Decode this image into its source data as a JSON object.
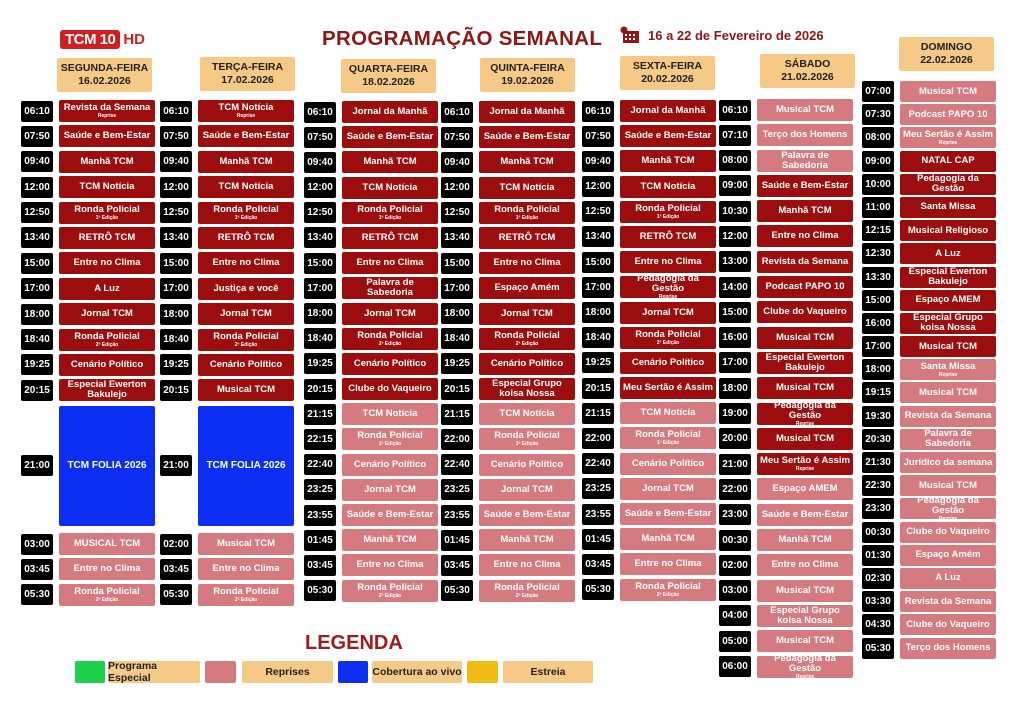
{
  "header": {
    "logo_text": "TCM 10 HD",
    "logo_main": "TCM 10",
    "logo_suffix": "HD",
    "title": "PROGRAMAÇÃO SEMANAL",
    "date_range": "16 a 22 de Fevereiro de 2026",
    "date_icon": "calendar-icon"
  },
  "colors": {
    "live": "#9c0e0e",
    "reprise": "#d57a7f",
    "cobertura": "#0b2ef2",
    "especial": "#1fd14a",
    "estreia": "#f0bd10",
    "header_bg": "#f7c987",
    "title": "#8d1717"
  },
  "days": [
    {
      "name": "SEGUNDA-FEIRA",
      "date": "16.02.2026",
      "programs": [
        {
          "time": "06:10",
          "title": "Revista da Semana",
          "sub": "Reprise",
          "type": "live"
        },
        {
          "time": "07:50",
          "title": "Saúde e Bem-Estar",
          "type": "live"
        },
        {
          "time": "09:40",
          "title": "Manhã TCM",
          "type": "live"
        },
        {
          "time": "12:00",
          "title": "TCM Notícia",
          "type": "live"
        },
        {
          "time": "12:50",
          "title": "Ronda Policial",
          "sub": "1ª Edição",
          "type": "live"
        },
        {
          "time": "13:40",
          "title": "RETRÔ TCM",
          "type": "live"
        },
        {
          "time": "15:00",
          "title": "Entre no Clima",
          "type": "live"
        },
        {
          "time": "17:00",
          "title": "A Luz",
          "type": "live"
        },
        {
          "time": "18:00",
          "title": "Jornal TCM",
          "type": "live"
        },
        {
          "time": "18:40",
          "title": "Ronda Policial",
          "sub": "2ª Edição",
          "type": "live"
        },
        {
          "time": "19:25",
          "title": "Cenário Político",
          "type": "live"
        },
        {
          "time": "20:15",
          "title": "Especial Ewerton Bakulejo",
          "type": "live"
        },
        {
          "time": "21:00",
          "title": "TCM FOLIA 2026",
          "type": "cobertura"
        },
        {
          "time": "03:00",
          "title": "MUSICAL TCM",
          "type": "reprise"
        },
        {
          "time": "03:45",
          "title": "Entre no Clima",
          "type": "reprise"
        },
        {
          "time": "05:30",
          "title": "Ronda Policial",
          "sub": "2ª Edição",
          "type": "reprise"
        }
      ]
    },
    {
      "name": "TERÇA-FEIRA",
      "date": "17.02.2026",
      "programs": [
        {
          "time": "06:10",
          "title": "TCM Notícia",
          "sub": "Reprise",
          "type": "live"
        },
        {
          "time": "07:50",
          "title": "Saúde e Bem-Estar",
          "type": "live"
        },
        {
          "time": "09:40",
          "title": "Manhã TCM",
          "type": "live"
        },
        {
          "time": "12:00",
          "title": "TCM Notícia",
          "type": "live"
        },
        {
          "time": "12:50",
          "title": "Ronda Policial",
          "sub": "1ª Edição",
          "type": "live"
        },
        {
          "time": "13:40",
          "title": "RETRÔ TCM",
          "type": "live"
        },
        {
          "time": "15:00",
          "title": "Entre no Clima",
          "type": "live"
        },
        {
          "time": "17:00",
          "title": "Justiça e você",
          "type": "live"
        },
        {
          "time": "18:00",
          "title": "Jornal TCM",
          "type": "live"
        },
        {
          "time": "18:40",
          "title": "Ronda Policial",
          "sub": "2ª Edição",
          "type": "live"
        },
        {
          "time": "19:25",
          "title": "Cenário Político",
          "type": "live"
        },
        {
          "time": "20:15",
          "title": "Musical TCM",
          "type": "live"
        },
        {
          "time": "21:00",
          "title": "TCM FOLIA 2026",
          "type": "cobertura"
        },
        {
          "time": "02:00",
          "title": "Musical TCM",
          "type": "reprise"
        },
        {
          "time": "03:45",
          "title": "Entre no Clima",
          "type": "reprise"
        },
        {
          "time": "05:30",
          "title": "Ronda Policial",
          "sub": "2ª Edição",
          "type": "reprise"
        }
      ]
    },
    {
      "name": "QUARTA-FEIRA",
      "date": "18.02.2026",
      "programs": [
        {
          "time": "06:10",
          "title": "Jornal da Manhã",
          "type": "live"
        },
        {
          "time": "07:50",
          "title": "Saúde e Bem-Estar",
          "type": "live"
        },
        {
          "time": "09:40",
          "title": "Manhã TCM",
          "type": "live"
        },
        {
          "time": "12:00",
          "title": "TCM Notícia",
          "type": "live"
        },
        {
          "time": "12:50",
          "title": "Ronda Policial",
          "sub": "1ª Edição",
          "type": "live"
        },
        {
          "time": "13:40",
          "title": "RETRÔ TCM",
          "type": "live"
        },
        {
          "time": "15:00",
          "title": "Entre no Clima",
          "type": "live"
        },
        {
          "time": "17:00",
          "title": "Palavra de Sabedoria",
          "type": "live"
        },
        {
          "time": "18:00",
          "title": "Jornal TCM",
          "type": "live"
        },
        {
          "time": "18:40",
          "title": "Ronda Policial",
          "sub": "2ª Edição",
          "type": "live"
        },
        {
          "time": "19:25",
          "title": "Cenário Político",
          "type": "live"
        },
        {
          "time": "20:15",
          "title": "Clube do Vaqueiro",
          "type": "live"
        },
        {
          "time": "21:15",
          "title": "TCM Notícia",
          "type": "reprise"
        },
        {
          "time": "22:15",
          "title": "Ronda Policial",
          "sub": "1ª Edição",
          "type": "reprise"
        },
        {
          "time": "22:40",
          "title": "Cenário Político",
          "type": "reprise"
        },
        {
          "time": "23:25",
          "title": "Jornal TCM",
          "type": "reprise"
        },
        {
          "time": "23:55",
          "title": "Saúde e Bem-Estar",
          "type": "reprise"
        },
        {
          "time": "01:45",
          "title": "Manhã TCM",
          "type": "reprise"
        },
        {
          "time": "03:45",
          "title": "Entre no Clima",
          "type": "reprise"
        },
        {
          "time": "05:30",
          "title": "Ronda Policial",
          "sub": "2ª Edição",
          "type": "reprise"
        }
      ]
    },
    {
      "name": "QUINTA-FEIRA",
      "date": "19.02.2026",
      "programs": [
        {
          "time": "06:10",
          "title": "Jornal da Manhã",
          "type": "live"
        },
        {
          "time": "07:50",
          "title": "Saúde e Bem-Estar",
          "type": "live"
        },
        {
          "time": "09:40",
          "title": "Manhã TCM",
          "type": "live"
        },
        {
          "time": "12:00",
          "title": "TCM Notícia",
          "type": "live"
        },
        {
          "time": "12:50",
          "title": "Ronda Policial",
          "sub": "1ª Edição",
          "type": "live"
        },
        {
          "time": "13:40",
          "title": "RETRÔ TCM",
          "type": "live"
        },
        {
          "time": "15:00",
          "title": "Entre no Clima",
          "type": "live"
        },
        {
          "time": "17:00",
          "title": "Espaço Amém",
          "type": "live"
        },
        {
          "time": "18:00",
          "title": "Jornal TCM",
          "type": "live"
        },
        {
          "time": "18:40",
          "title": "Ronda Policial",
          "sub": "2ª Edição",
          "type": "live"
        },
        {
          "time": "19:25",
          "title": "Cenário Político",
          "type": "live"
        },
        {
          "time": "20:15",
          "title": "Especial Grupo koisa Nossa",
          "type": "live"
        },
        {
          "time": "21:15",
          "title": "TCM Notícia",
          "type": "reprise"
        },
        {
          "time": "22:00",
          "title": "Ronda Policial",
          "sub": "1ª Edição",
          "type": "reprise"
        },
        {
          "time": "22:40",
          "title": "Cenário Político",
          "type": "reprise"
        },
        {
          "time": "23:25",
          "title": "Jornal TCM",
          "type": "reprise"
        },
        {
          "time": "23:55",
          "title": "Saúde e Bem-Estar",
          "type": "reprise"
        },
        {
          "time": "01:45",
          "title": "Manhã TCM",
          "type": "reprise"
        },
        {
          "time": "03:45",
          "title": "Entre no Clima",
          "type": "reprise"
        },
        {
          "time": "05:30",
          "title": "Ronda Policial",
          "sub": "2ª Edição",
          "type": "reprise"
        }
      ]
    },
    {
      "name": "SEXTA-FEIRA",
      "date": "20.02.2026",
      "programs": [
        {
          "time": "06:10",
          "title": "Jornal da Manhã",
          "type": "live"
        },
        {
          "time": "07:50",
          "title": "Saúde e Bem-Estar",
          "type": "live"
        },
        {
          "time": "09:40",
          "title": "Manhã TCM",
          "type": "live"
        },
        {
          "time": "12:00",
          "title": "TCM Notícia",
          "type": "live"
        },
        {
          "time": "12:50",
          "title": "Ronda Policial",
          "sub": "1ª Edição",
          "type": "live"
        },
        {
          "time": "13:40",
          "title": "RETRÔ TCM",
          "type": "live"
        },
        {
          "time": "15:00",
          "title": "Entre no Clima",
          "type": "live"
        },
        {
          "time": "17:00",
          "title": "Pedagogia da Gestão",
          "sub": "Reprise",
          "type": "live"
        },
        {
          "time": "18:00",
          "title": "Jornal TCM",
          "type": "live"
        },
        {
          "time": "18:40",
          "title": "Ronda Policial",
          "sub": "2ª Edição",
          "type": "live"
        },
        {
          "time": "19:25",
          "title": "Cenário Político",
          "type": "live"
        },
        {
          "time": "20:15",
          "title": "Meu Sertão é Assim",
          "type": "live"
        },
        {
          "time": "21:15",
          "title": "TCM Notícia",
          "type": "reprise"
        },
        {
          "time": "22:00",
          "title": "Ronda Policial",
          "sub": "1ª Edição",
          "type": "reprise"
        },
        {
          "time": "22:40",
          "title": "Cenário Político",
          "type": "reprise"
        },
        {
          "time": "23:25",
          "title": "Jornal TCM",
          "type": "reprise"
        },
        {
          "time": "23:55",
          "title": "Saúde e Bem-Estar",
          "type": "reprise"
        },
        {
          "time": "01:45",
          "title": "Manhã TCM",
          "type": "reprise"
        },
        {
          "time": "03:45",
          "title": "Entre no Clima",
          "type": "reprise"
        },
        {
          "time": "05:30",
          "title": "Ronda Policial",
          "sub": "2ª Edição",
          "type": "reprise"
        }
      ]
    },
    {
      "name": "SÁBADO",
      "date": "21.02.2026",
      "programs": [
        {
          "time": "06:10",
          "title": "Musical TCM",
          "type": "reprise"
        },
        {
          "time": "07:10",
          "title": "Terço dos Homens",
          "type": "reprise"
        },
        {
          "time": "08:00",
          "title": "Palavra de Sabedoria",
          "type": "reprise"
        },
        {
          "time": "09:00",
          "title": "Saúde e Bem-Estar",
          "type": "live"
        },
        {
          "time": "10:30",
          "title": "Manhã TCM",
          "type": "live"
        },
        {
          "time": "12:00",
          "title": "Entre no Clima",
          "type": "live"
        },
        {
          "time": "13:00",
          "title": "Revista da Semana",
          "type": "live"
        },
        {
          "time": "14:00",
          "title": "Podcast PAPO 10",
          "type": "live"
        },
        {
          "time": "15:00",
          "title": "Clube do Vaqueiro",
          "type": "live"
        },
        {
          "time": "16:00",
          "title": "Musical TCM",
          "type": "live"
        },
        {
          "time": "17:00",
          "title": "Especial Ewerton Bakulejo",
          "type": "live"
        },
        {
          "time": "18:00",
          "title": "Musical TCM",
          "type": "live"
        },
        {
          "time": "19:00",
          "title": "Pedagogia da Gestão",
          "sub": "Reprise",
          "type": "live"
        },
        {
          "time": "20:00",
          "title": "Musical TCM",
          "type": "live"
        },
        {
          "time": "21:00",
          "title": "Meu Sertão é Assim",
          "sub": "Reprise",
          "type": "live"
        },
        {
          "time": "22:00",
          "title": "Espaço AMEM",
          "type": "reprise"
        },
        {
          "time": "23:00",
          "title": "Saúde e Bem-Estar",
          "type": "reprise"
        },
        {
          "time": "00:30",
          "title": "Manhã TCM",
          "type": "reprise"
        },
        {
          "time": "02:00",
          "title": "Entre no Clima",
          "type": "reprise"
        },
        {
          "time": "03:00",
          "title": "Musical TCM",
          "type": "reprise"
        },
        {
          "time": "04:00",
          "title": "Especial Grupo koisa Nossa",
          "type": "reprise"
        },
        {
          "time": "05:00",
          "title": "Musical TCM",
          "type": "reprise"
        },
        {
          "time": "06:00",
          "title": "Pedagogia da Gestão",
          "sub": "Reprise",
          "type": "reprise"
        }
      ]
    },
    {
      "name": "DOMINGO",
      "date": "22.02.2026",
      "programs": [
        {
          "time": "07:00",
          "title": "Musical TCM",
          "type": "reprise"
        },
        {
          "time": "07:30",
          "title": "Podcast PAPO 10",
          "type": "reprise"
        },
        {
          "time": "08:00",
          "title": "Meu Sertão é Assim",
          "sub": "Reprise",
          "type": "reprise"
        },
        {
          "time": "09:00",
          "title": "NATAL CAP",
          "type": "live"
        },
        {
          "time": "10:00",
          "title": "Pedagogia da Gestão",
          "type": "live"
        },
        {
          "time": "11:00",
          "title": "Santa Missa",
          "type": "live"
        },
        {
          "time": "12:15",
          "title": "Musical Religioso",
          "type": "live"
        },
        {
          "time": "12:30",
          "title": "A Luz",
          "type": "live"
        },
        {
          "time": "13:30",
          "title": "Especial Ewerton Bakulejo",
          "type": "live"
        },
        {
          "time": "15:00",
          "title": "Espaço AMEM",
          "type": "live"
        },
        {
          "time": "16:00",
          "title": "Especial Grupo koisa Nossa",
          "type": "live"
        },
        {
          "time": "17:00",
          "title": "Musical TCM",
          "type": "live"
        },
        {
          "time": "18:00",
          "title": "Santa Missa",
          "sub": "Reprise",
          "type": "reprise"
        },
        {
          "time": "19:15",
          "title": "Musical TCM",
          "type": "reprise"
        },
        {
          "time": "19:30",
          "title": "Revista da Semana",
          "type": "reprise"
        },
        {
          "time": "20:30",
          "title": "Palavra de Sabedoria",
          "type": "reprise"
        },
        {
          "time": "21:30",
          "title": "Jurídico da semana",
          "type": "reprise"
        },
        {
          "time": "22:30",
          "title": "Musical TCM",
          "type": "reprise"
        },
        {
          "time": "23:30",
          "title": "Pedagogia da Gestão",
          "sub": "Reprise",
          "type": "reprise"
        },
        {
          "time": "00:30",
          "title": "Clube do Vaqueiro",
          "type": "reprise"
        },
        {
          "time": "01:30",
          "title": "Espaço Amém",
          "type": "reprise"
        },
        {
          "time": "02:30",
          "title": "A Luz",
          "type": "reprise"
        },
        {
          "time": "03:30",
          "title": "Revista da Semana",
          "type": "reprise"
        },
        {
          "time": "04:30",
          "title": "Clube do Vaqueiro",
          "type": "reprise"
        },
        {
          "time": "05:30",
          "title": "Terço dos Homens",
          "type": "reprise"
        }
      ]
    }
  ],
  "legend": {
    "title": "LEGENDA",
    "items": [
      {
        "label": "Programa Especial",
        "color": "#1fd14a"
      },
      {
        "label": "Reprises",
        "color": "#d57a7f"
      },
      {
        "label": "Cobertura ao vivo",
        "color": "#0b2ef2"
      },
      {
        "label": "Estreia",
        "color": "#f0bd10"
      }
    ]
  }
}
